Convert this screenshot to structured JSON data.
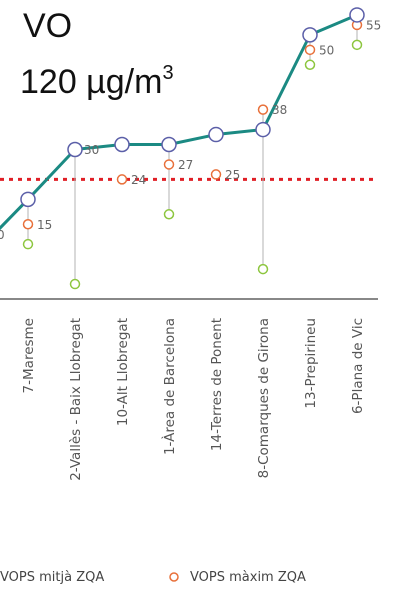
{
  "chart_data": {
    "type": "line",
    "title_line1": "VO",
    "title_line2_main": "120 µg/m",
    "title_line2_sup": "3",
    "categories": [
      "7-Maresme",
      "2-Vallès - Baix Llobregat",
      "10-Alt Llobregat",
      "1-Àrea de Barcelona",
      "14-Terres de Ponent",
      "8-Comarques de Girona",
      "13-Prepirineu",
      "6-Plana de Vic"
    ],
    "series": [
      {
        "values": [
          20,
          30,
          31,
          31,
          33,
          34,
          53,
          57
        ]
      },
      {
        "name": "VOPS màxim ZQA",
        "values": [
          15,
          30,
          24,
          27,
          25,
          38,
          50,
          55
        ]
      }
    ],
    "min_values": [
      11,
      3,
      null,
      17,
      null,
      6,
      47,
      51
    ],
    "max_labels": [
      "15",
      "30",
      "24",
      "27",
      "25",
      "38",
      "50",
      "55"
    ],
    "partial_labels": [
      "0"
    ],
    "target_line": 24,
    "legend": [
      {
        "label": "VOPS mitjà ZQA"
      },
      {
        "label": "VOPS màxim ZQA"
      }
    ],
    "colors": {
      "mean_line": "#1b8a83",
      "mean_marker": "#5b5fa8",
      "max_marker": "#e8703a",
      "min_marker": "#8dc63f",
      "target": "#e01f26",
      "axis": "#888888"
    },
    "ylim": [
      0,
      60
    ]
  }
}
